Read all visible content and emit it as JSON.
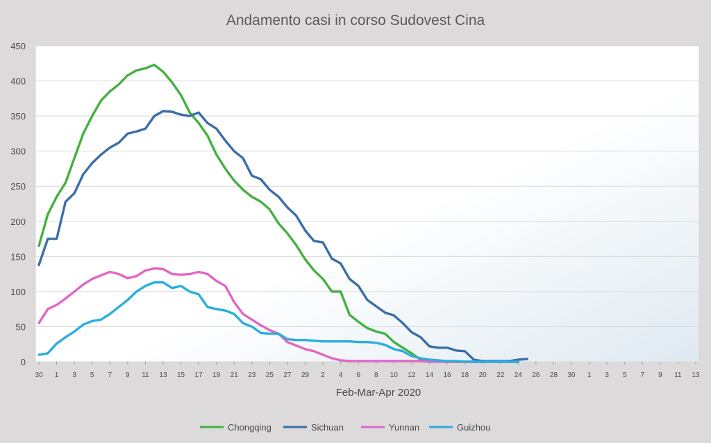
{
  "chart_data": {
    "type": "line",
    "title": "Andamento casi in corso Sudovest Cina",
    "xlabel": "Feb-Mar-Apr 2020",
    "ylabel": "",
    "ylim": [
      0,
      450
    ],
    "yticks": [
      0,
      50,
      100,
      150,
      200,
      250,
      300,
      350,
      400,
      450
    ],
    "grid": true,
    "legend_position": "bottom",
    "x_tick_labels": [
      "30",
      "1",
      "3",
      "5",
      "7",
      "9",
      "11",
      "13",
      "15",
      "17",
      "19",
      "21",
      "23",
      "25",
      "27",
      "29",
      "2",
      "4",
      "6",
      "8",
      "10",
      "12",
      "14",
      "16",
      "18",
      "20",
      "22",
      "24",
      "26",
      "28",
      "30",
      "1",
      "3",
      "5",
      "7",
      "9",
      "11",
      "13"
    ],
    "x_count": 75,
    "series": [
      {
        "name": "Chongqing",
        "color": "#44b041",
        "values": [
          165,
          210,
          235,
          255,
          290,
          325,
          350,
          372,
          385,
          395,
          408,
          415,
          418,
          423,
          413,
          398,
          380,
          355,
          340,
          322,
          295,
          275,
          258,
          245,
          235,
          228,
          217,
          197,
          183,
          166,
          146,
          130,
          118,
          100,
          100,
          67,
          57,
          48,
          43,
          40,
          28,
          20,
          12,
          3,
          2,
          1,
          0,
          0,
          0,
          0,
          0,
          0,
          0,
          0,
          0
        ]
      },
      {
        "name": "Sichuan",
        "color": "#3a6ea5",
        "values": [
          138,
          175,
          175,
          228,
          240,
          267,
          283,
          295,
          305,
          312,
          325,
          328,
          332,
          350,
          357,
          356,
          352,
          350,
          355,
          340,
          332,
          315,
          300,
          290,
          265,
          260,
          245,
          235,
          220,
          208,
          187,
          172,
          170,
          147,
          140,
          118,
          108,
          88,
          79,
          70,
          66,
          55,
          42,
          35,
          22,
          20,
          20,
          16,
          15,
          3,
          1,
          1,
          1,
          1,
          3,
          4
        ]
      },
      {
        "name": "Yunnan",
        "color": "#e066c5",
        "values": [
          55,
          75,
          81,
          90,
          100,
          110,
          118,
          123,
          128,
          125,
          119,
          122,
          130,
          133,
          132,
          125,
          124,
          125,
          128,
          125,
          115,
          108,
          85,
          68,
          60,
          52,
          45,
          40,
          28,
          23,
          18,
          15,
          10,
          5,
          2,
          1,
          1,
          1,
          1,
          1,
          1,
          1,
          1,
          1,
          0,
          0,
          0,
          0,
          0,
          0,
          0,
          0,
          0,
          0,
          0
        ]
      },
      {
        "name": "Guizhou",
        "color": "#2aaee0",
        "values": [
          10,
          12,
          26,
          35,
          43,
          53,
          58,
          60,
          68,
          78,
          88,
          100,
          108,
          113,
          113,
          105,
          108,
          100,
          96,
          78,
          75,
          73,
          68,
          55,
          50,
          41,
          40,
          40,
          32,
          31,
          31,
          30,
          29,
          29,
          29,
          29,
          28,
          28,
          27,
          24,
          18,
          15,
          8,
          5,
          3,
          2,
          1,
          1,
          0,
          0,
          0,
          0,
          0,
          0,
          0
        ]
      }
    ]
  }
}
